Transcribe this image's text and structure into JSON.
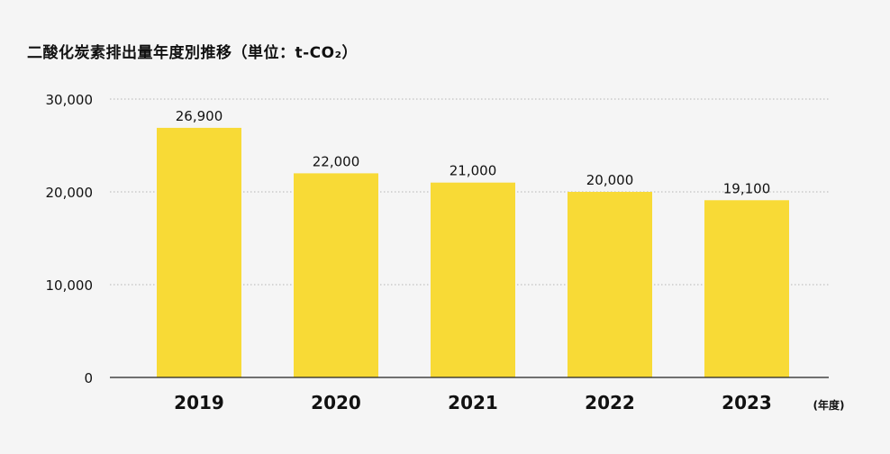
{
  "chart_data": {
    "type": "bar",
    "title": "二酸化炭素排出量年度別推移（単位：t-CO₂）",
    "xlabel": "(年度)",
    "ylabel": "",
    "categories": [
      "2019",
      "2020",
      "2021",
      "2022",
      "2023"
    ],
    "values": [
      26900,
      22000,
      21000,
      20000,
      19100
    ],
    "value_labels": [
      "26,900",
      "22,000",
      "21,000",
      "20,000",
      "19,100"
    ],
    "yticks": [
      0,
      10000,
      20000,
      30000
    ],
    "ytick_labels": [
      "0",
      "10,000",
      "20,000",
      "30,000"
    ],
    "ylim": [
      0,
      30000
    ],
    "grid": true,
    "colors": {
      "bar": "#f8da36",
      "grid": "#b5b5b5",
      "axis": "#222222",
      "background": "#f5f5f5"
    }
  }
}
